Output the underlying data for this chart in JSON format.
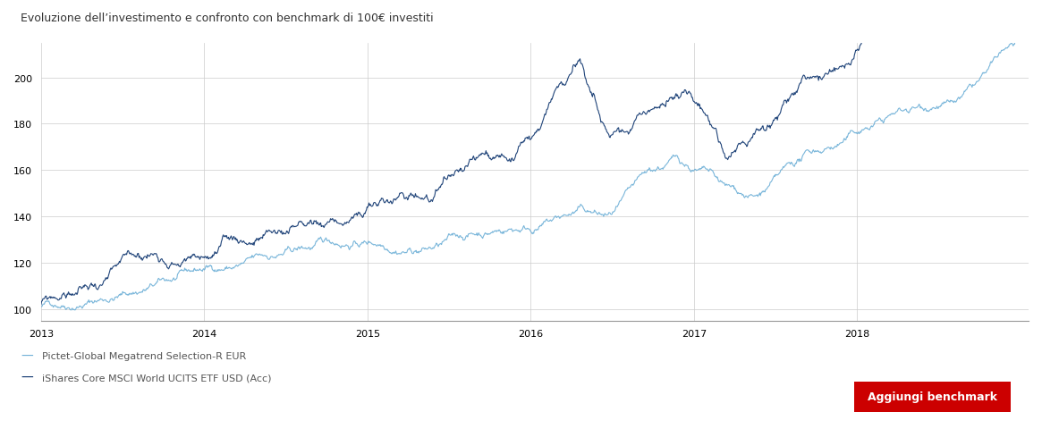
{
  "title": "Evoluzione dell’investimento e confronto con benchmark di 100€ investiti",
  "series1_label": "Pictet-Global Megatrend Selection-R EUR",
  "series2_label": "iShares Core MSCI World UCITS ETF USD (Acc)",
  "series1_color": "#6baed6",
  "series2_color": "#08306b",
  "background_color": "#ffffff",
  "grid_color": "#cccccc",
  "ylim": [
    95,
    215
  ],
  "yticks": [
    100,
    120,
    140,
    160,
    180,
    200
  ],
  "xlabel_years": [
    "2013",
    "2014",
    "2015",
    "2016",
    "2017",
    "2018"
  ],
  "title_fontsize": 9,
  "axis_fontsize": 8,
  "legend_fontsize": 8,
  "button_text": "Aggiungi benchmark",
  "button_color": "#cc0000",
  "button_text_color": "#ffffff"
}
